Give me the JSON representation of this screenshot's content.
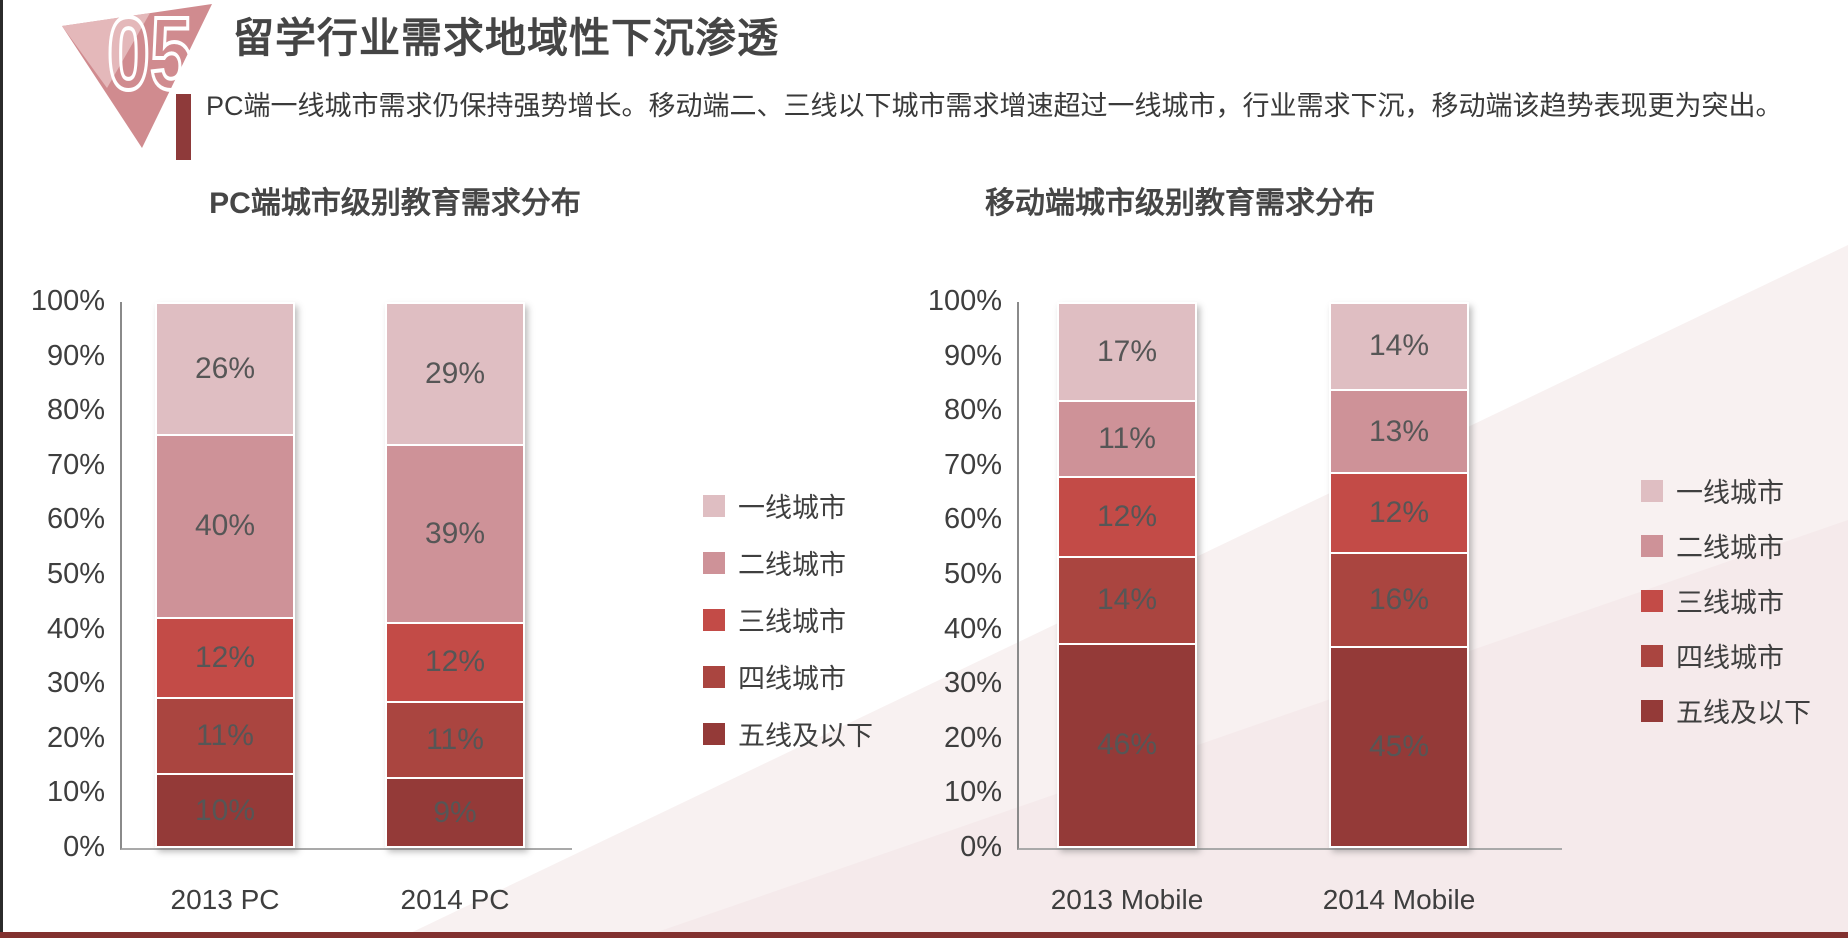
{
  "page": {
    "badge_number": "05",
    "title": "留学行业需求地域性下沉渗透",
    "subtitle": "PC端一线城市需求仍保持强势增长。移动端二、三线以下城市需求增速超过一线城市，行业需求下沉，移动端该趋势表现更为突出。"
  },
  "decor": {
    "accent_bar_color": "#8E3A3A",
    "badge_triangle_color": "#D08B8F",
    "badge_highlight_color": "#E4B8BA",
    "footer_bar_color": "#82312F",
    "bg_triangle_light": "#F8F1F1",
    "bg_triangle_deep": "#F3E3E6"
  },
  "chart_data": [
    {
      "type": "bar",
      "stacked": true,
      "title": "PC端城市级别教育需求分布",
      "categories": [
        "2013 PC",
        "2014 PC"
      ],
      "series": [
        {
          "name": "一线城市",
          "values": [
            26,
            29
          ],
          "color": "#DFBEC2"
        },
        {
          "name": "二线城市",
          "values": [
            40,
            39
          ],
          "color": "#CE9298"
        },
        {
          "name": "三线城市",
          "values": [
            12,
            12
          ],
          "color": "#C34B47"
        },
        {
          "name": "四线城市",
          "values": [
            11,
            11
          ],
          "color": "#AA4540"
        },
        {
          "name": "五线及以下",
          "values": [
            10,
            9
          ],
          "color": "#943A38"
        }
      ],
      "xlabel": "",
      "ylabel": "",
      "ylim": [
        0,
        100
      ],
      "y_ticks": [
        "100%",
        "90%",
        "80%",
        "70%",
        "60%",
        "50%",
        "40%",
        "30%",
        "20%",
        "10%",
        "0%"
      ],
      "grid": false,
      "legend_position": "right",
      "value_suffix": "%"
    },
    {
      "type": "bar",
      "stacked": true,
      "title": "移动端城市级别教育需求分布",
      "categories": [
        "2013 Mobile",
        "2014 Mobile"
      ],
      "series": [
        {
          "name": "一线城市",
          "values": [
            17,
            14
          ],
          "color": "#DFBEC2"
        },
        {
          "name": "二线城市",
          "values": [
            11,
            13
          ],
          "color": "#CE9298"
        },
        {
          "name": "三线城市",
          "values": [
            12,
            12
          ],
          "color": "#C34B47"
        },
        {
          "name": "四线城市",
          "values": [
            14,
            16
          ],
          "color": "#AA4540"
        },
        {
          "name": "五线及以下",
          "values": [
            46,
            45
          ],
          "color": "#943A38"
        }
      ],
      "xlabel": "",
      "ylabel": "",
      "ylim": [
        0,
        100
      ],
      "y_ticks": [
        "100%",
        "90%",
        "80%",
        "70%",
        "60%",
        "50%",
        "40%",
        "30%",
        "20%",
        "10%",
        "0%"
      ],
      "grid": false,
      "legend_position": "right",
      "value_suffix": "%"
    }
  ]
}
